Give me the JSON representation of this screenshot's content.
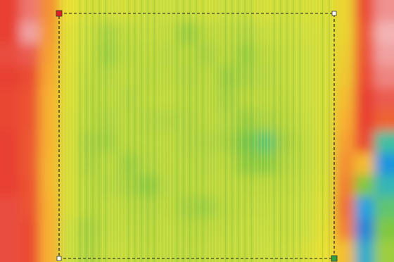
{
  "chart_data": {
    "type": "heatmap",
    "tick_labels": false,
    "color_range": [
      0,
      100
    ],
    "cells": [
      [
        88,
        92,
        76,
        64,
        60,
        59,
        60,
        58,
        58,
        58,
        59,
        58,
        58,
        60,
        59,
        60,
        61,
        66,
        86,
        94
      ],
      [
        88,
        95,
        75,
        62,
        58,
        52,
        56,
        57,
        56,
        50,
        55,
        56,
        54,
        57,
        58,
        59,
        60,
        66,
        84,
        96
      ],
      [
        89,
        90,
        74,
        62,
        57,
        50,
        55,
        56,
        54,
        55,
        52,
        55,
        50,
        55,
        57,
        58,
        60,
        67,
        85,
        95
      ],
      [
        88,
        86,
        73,
        61,
        56,
        54,
        56,
        55,
        55,
        54,
        55,
        50,
        52,
        54,
        57,
        58,
        60,
        68,
        86,
        93
      ],
      [
        87,
        85,
        72,
        61,
        55,
        55,
        54,
        56,
        56,
        55,
        55,
        52,
        55,
        55,
        56,
        58,
        60,
        70,
        88,
        90
      ],
      [
        87,
        85,
        72,
        60,
        55,
        53,
        55,
        54,
        53,
        54,
        55,
        54,
        50,
        52,
        55,
        57,
        60,
        72,
        88,
        82
      ],
      [
        88,
        84,
        72,
        60,
        52,
        51,
        55,
        55,
        55,
        54,
        53,
        52,
        44,
        40,
        52,
        56,
        60,
        74,
        86,
        35
      ],
      [
        88,
        84,
        71,
        60,
        53,
        55,
        50,
        54,
        55,
        55,
        54,
        55,
        48,
        46,
        54,
        56,
        60,
        76,
        70,
        18
      ],
      [
        88,
        85,
        71,
        60,
        55,
        54,
        52,
        48,
        54,
        55,
        55,
        56,
        55,
        55,
        56,
        57,
        61,
        78,
        45,
        30
      ],
      [
        89,
        85,
        72,
        60,
        55,
        56,
        55,
        54,
        55,
        52,
        50,
        55,
        56,
        56,
        57,
        58,
        62,
        80,
        20,
        40
      ],
      [
        89,
        86,
        72,
        58,
        52,
        56,
        56,
        55,
        56,
        55,
        55,
        56,
        57,
        57,
        57,
        58,
        63,
        78,
        15,
        45
      ],
      [
        89,
        86,
        72,
        58,
        53,
        57,
        57,
        56,
        56,
        56,
        56,
        57,
        57,
        58,
        58,
        60,
        64,
        70,
        25,
        50
      ]
    ]
  }
}
